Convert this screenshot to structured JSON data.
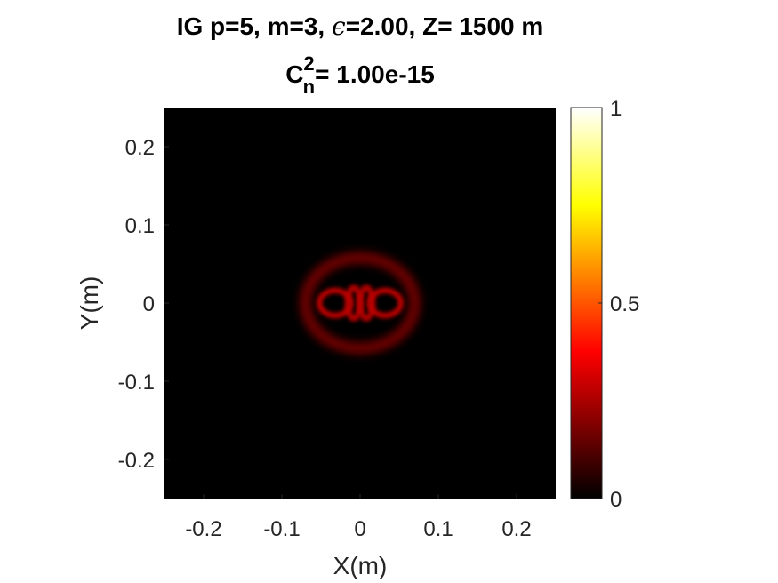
{
  "chart_data": {
    "type": "heatmap",
    "title_line1": {
      "pre": "IG p=5, m=3, ",
      "symbol": "ϵ",
      "post": "=2.00, Z= 1500 m"
    },
    "title_line2": {
      "base": "C",
      "superscript": "2",
      "subscript": "n",
      "post": "= 1.00e-15"
    },
    "xlabel": "X(m)",
    "ylabel": "Y(m)",
    "xlim": [
      -0.25,
      0.25
    ],
    "ylim": [
      -0.25,
      0.25
    ],
    "xticks": [
      -0.2,
      -0.1,
      0,
      0.1,
      0.2
    ],
    "xtick_labels": [
      "-0.2",
      "-0.1",
      "0",
      "0.1",
      "0.2"
    ],
    "yticks": [
      0.2,
      0.1,
      0,
      -0.1,
      -0.2
    ],
    "ytick_labels": [
      "0.2",
      "0.1",
      "0",
      "-0.1",
      "-0.2"
    ],
    "colorbar": {
      "colormap": "hot",
      "clim": [
        0,
        1
      ],
      "ticks": [
        0,
        0.5,
        1
      ],
      "tick_labels": [
        "0",
        "0.5",
        "1"
      ]
    },
    "intensity_features": [
      {
        "shape": "ring",
        "center": [
          0,
          0
        ],
        "rx": 0.07,
        "ry": 0.058,
        "width": 0.014,
        "peak": 0.17
      },
      {
        "shape": "blob",
        "center": [
          -0.032,
          0
        ],
        "rx": 0.02,
        "ry": 0.016,
        "peak": 0.3
      },
      {
        "shape": "blob",
        "center": [
          0.032,
          0
        ],
        "rx": 0.02,
        "ry": 0.016,
        "peak": 0.3
      },
      {
        "shape": "blob",
        "center": [
          -0.008,
          0
        ],
        "rx": 0.008,
        "ry": 0.02,
        "peak": 0.28
      },
      {
        "shape": "blob",
        "center": [
          0.008,
          0
        ],
        "rx": 0.008,
        "ry": 0.02,
        "peak": 0.28
      }
    ]
  }
}
